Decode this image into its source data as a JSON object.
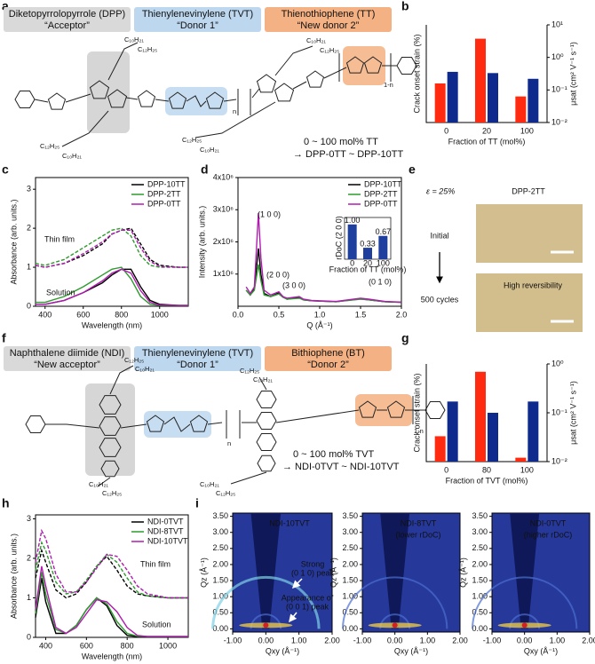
{
  "panel_labels": [
    "a",
    "b",
    "c",
    "d",
    "e",
    "f",
    "g",
    "h",
    "i"
  ],
  "a": {
    "units": [
      {
        "name": "Diketopyrrolopyrrole (DPP)",
        "role": "“Acceptor”",
        "color": "#d9d9d9"
      },
      {
        "name": "Thienylenevinylene (TVT)",
        "role": "“Donor 1”",
        "color": "#bdd7ee"
      },
      {
        "name": "Thienothiophene (TT)",
        "role": "“New donor 2”",
        "color": "#f4b183"
      }
    ],
    "side_chains": [
      "C₁₀H₂₁",
      "C₁₂H₂₅",
      "C₁₂H₂₅",
      "C₁₀H₂₁",
      "C₁₀H₂₁",
      "C₁₂H₂₅",
      "C₁₂H₂₅",
      "C₁₀H₂₁"
    ],
    "repeat_labels": [
      "n",
      "1-n"
    ],
    "composition": "0 ~ 100 mol% TT",
    "series_range": "→ DPP-0TT ~ DPP-10TT"
  },
  "b": {
    "type": "bar",
    "categories": [
      "0",
      "20",
      "100"
    ],
    "xlabel": "Fraction of TT (mol%)",
    "ylabel": "Crack onset strain (%)",
    "y2label": "μsat (cm² V⁻¹ s⁻¹)",
    "ylim": [
      0,
      120
    ],
    "y2lim": [
      0.01,
      10
    ],
    "y2scale": "log",
    "y2ticks": [
      {
        "value": 10,
        "label": "10¹"
      },
      {
        "value": 1,
        "label": "10⁰"
      },
      {
        "value": 0.1,
        "label": "10⁻¹"
      },
      {
        "value": 0.01,
        "label": "10⁻²"
      }
    ],
    "series": [
      {
        "color": "#ff2a10",
        "values": [
          48,
          103,
          32
        ]
      },
      {
        "color": "#0d2a8c",
        "axis": "y2",
        "values": [
          0.36,
          0.33,
          0.22
        ]
      }
    ]
  },
  "c": {
    "type": "line",
    "xlabel": "Wavelength (nm)",
    "ylabel": "Absorbance (arb. units.)",
    "x": [
      350,
      400,
      500,
      600,
      700,
      750,
      800,
      850,
      900,
      950,
      1000,
      1100,
      1150
    ],
    "xlim": [
      350,
      1150
    ],
    "xticks": [
      400,
      600,
      800,
      1000
    ],
    "ylim": [
      0,
      3.3
    ],
    "yticks": [
      0,
      1,
      2,
      3
    ],
    "annotations": [
      "Thin film",
      "Solution"
    ],
    "series": [
      {
        "name": "DPP-10TT",
        "color": "#000000",
        "thin_film": [
          1.05,
          1.0,
          1.1,
          1.3,
          1.6,
          1.85,
          1.95,
          2.0,
          1.6,
          1.2,
          1.05,
          1.0,
          1.0
        ],
        "solution": [
          0.05,
          0.05,
          0.15,
          0.35,
          0.6,
          0.8,
          0.95,
          0.95,
          0.5,
          0.15,
          0.05,
          0.02,
          0.02
        ]
      },
      {
        "name": "DPP-2TT",
        "color": "#2e9b2e",
        "thin_film": [
          1.1,
          1.05,
          1.2,
          1.5,
          1.8,
          1.95,
          2.0,
          1.8,
          1.3,
          1.05,
          1.0,
          1.0,
          1.0
        ],
        "solution": [
          0.1,
          0.1,
          0.25,
          0.5,
          0.8,
          0.95,
          1.0,
          0.7,
          0.25,
          0.05,
          0.02,
          0.02,
          0.02
        ]
      },
      {
        "name": "DPP-0TT",
        "color": "#b01cb0",
        "thin_film": [
          1.05,
          1.0,
          1.1,
          1.35,
          1.65,
          1.85,
          1.95,
          1.95,
          1.5,
          1.15,
          1.02,
          1.0,
          1.0
        ],
        "solution": [
          0.05,
          0.05,
          0.15,
          0.35,
          0.65,
          0.85,
          0.95,
          0.85,
          0.4,
          0.1,
          0.03,
          0.02,
          0.02
        ]
      }
    ]
  },
  "d": {
    "type": "line",
    "xlabel": "Q (Å⁻¹)",
    "ylabel": "Intensity (arb. units.)",
    "x": [
      0.1,
      0.15,
      0.2,
      0.25,
      0.28,
      0.32,
      0.4,
      0.5,
      0.55,
      0.6,
      0.75,
      0.8,
      0.9,
      1.2,
      1.5,
      1.6,
      1.8,
      2.0
    ],
    "xlim": [
      0,
      2
    ],
    "xticks": [
      {
        "value": 0,
        "label": "0.0"
      },
      0.5,
      {
        "value": 1,
        "label": "1.0"
      },
      1.5,
      {
        "value": 2,
        "label": "2.0"
      }
    ],
    "ylim": [
      0,
      4000000
    ],
    "yticks": [
      {
        "value": 1000000,
        "label": "1x10⁶"
      },
      {
        "value": 2000000,
        "label": "2x10⁶"
      },
      {
        "value": 3000000,
        "label": "3x10⁶"
      },
      {
        "value": 4000000,
        "label": "4x10⁶"
      }
    ],
    "peaks": [
      "(1 0 0)",
      "(2 0 0)",
      "(3 0 0)",
      "(0 1 0)"
    ],
    "series": [
      {
        "name": "DPP-10TT",
        "color": "#000000",
        "values": [
          500000,
          350000,
          550000,
          1800000,
          1000000,
          400000,
          300000,
          420000,
          300000,
          220000,
          270000,
          200000,
          170000,
          140000,
          230000,
          200000,
          140000,
          120000
        ]
      },
      {
        "name": "DPP-2TT",
        "color": "#2e9b2e",
        "values": [
          500000,
          350000,
          500000,
          1300000,
          800000,
          350000,
          300000,
          380000,
          280000,
          220000,
          250000,
          200000,
          170000,
          140000,
          220000,
          200000,
          140000,
          120000
        ]
      },
      {
        "name": "DPP-0TT",
        "color": "#b01cb0",
        "values": [
          600000,
          400000,
          600000,
          2900000,
          1500000,
          500000,
          350000,
          450000,
          300000,
          250000,
          300000,
          220000,
          180000,
          150000,
          250000,
          220000,
          150000,
          130000
        ]
      }
    ],
    "inset": {
      "type": "bar",
      "categories": [
        "0",
        "20",
        "100"
      ],
      "values": [
        1,
        0.33,
        0.67
      ],
      "value_labels": [
        "1.00",
        "0.33",
        "0.67"
      ],
      "ylim": [
        0,
        1.2
      ],
      "color": "#1f3f9e",
      "xlabel": "Fraction of TT (mol%)",
      "ylabel": "rDoC (2 0 0)"
    }
  },
  "e": {
    "strain": "ε = 25%",
    "sample": "DPP-2TT",
    "states": [
      "Initial",
      "500 cycles"
    ],
    "note": "High reversibility"
  },
  "f": {
    "units": [
      {
        "name": "Naphthalene diimide (NDI)",
        "role": "“New acceptor”",
        "color": "#d9d9d9"
      },
      {
        "name": "Thienylenevinylene (TVT)",
        "role": "“Donor 1”",
        "color": "#bdd7ee"
      },
      {
        "name": "Bithiophene (BT)",
        "role": "“Donor 2”",
        "color": "#f4b183"
      }
    ],
    "side_chains": [
      "C₁₂H₂₅",
      "C₁₀H₂₁",
      "C₁₀H₂₁",
      "C₁₂H₂₅",
      "C₁₂H₂₅",
      "C₁₀H₂₁",
      "C₁₀H₂₁",
      "C₁₂H₂₅"
    ],
    "repeat_labels": [
      "n",
      "1-n"
    ],
    "composition": "0 ~ 100 mol% TVT",
    "series_range": "→ NDI-0TVT ~ NDI-10TVT"
  },
  "g": {
    "type": "bar",
    "categories": [
      "0",
      "80",
      "100"
    ],
    "xlabel": "Fraction of TVT (mol%)",
    "ylabel": "Crack onset strain (%)",
    "y2label": "μsat (cm² V⁻¹ s⁻¹)",
    "ylim": [
      0,
      100
    ],
    "y2lim": [
      0.01,
      1
    ],
    "y2scale": "log",
    "y2ticks": [
      {
        "value": 1,
        "label": "10⁰"
      },
      {
        "value": 0.1,
        "label": "10⁻¹"
      },
      {
        "value": 0.01,
        "label": "10⁻²"
      }
    ],
    "series": [
      {
        "color": "#ff2a10",
        "values": [
          26,
          92,
          4
        ]
      },
      {
        "color": "#0d2a8c",
        "axis": "y2",
        "values": [
          0.17,
          0.1,
          0.17
        ]
      }
    ]
  },
  "h": {
    "type": "line",
    "xlabel": "Wavelength (nm)",
    "ylabel": "Absorbance (arb. units.)",
    "x": [
      350,
      380,
      400,
      450,
      500,
      550,
      600,
      650,
      700,
      750,
      800,
      850,
      900,
      1000,
      1100
    ],
    "xlim": [
      350,
      1100
    ],
    "xticks": [
      400,
      600,
      800,
      1000
    ],
    "ylim": [
      0,
      3.1
    ],
    "yticks": [
      0,
      1,
      2,
      3
    ],
    "annotations": [
      "Thin film",
      "Solution"
    ],
    "series": [
      {
        "name": "NDI-0TVT",
        "color": "#000000",
        "thin_film": [
          1.5,
          2.2,
          1.9,
          1.2,
          1.0,
          1.1,
          1.4,
          1.8,
          2.05,
          1.7,
          1.3,
          1.1,
          1.05,
          1.0,
          1.0
        ],
        "solution": [
          0.5,
          1.5,
          0.9,
          0.1,
          0.1,
          0.3,
          0.7,
          1.0,
          0.8,
          0.3,
          0.05,
          0.02,
          0.02,
          0.02,
          0.02
        ]
      },
      {
        "name": "NDI-8TVT",
        "color": "#2e9b2e",
        "thin_film": [
          1.7,
          2.4,
          2.2,
          1.4,
          1.1,
          1.15,
          1.45,
          1.8,
          2.1,
          1.9,
          1.5,
          1.15,
          1.05,
          1.0,
          1.0
        ],
        "solution": [
          0.6,
          1.65,
          1.1,
          0.2,
          0.1,
          0.3,
          0.7,
          1.0,
          0.85,
          0.4,
          0.1,
          0.03,
          0.02,
          0.02,
          0.02
        ]
      },
      {
        "name": "NDI-10TVT",
        "color": "#b01cb0",
        "thin_film": [
          1.9,
          2.7,
          2.5,
          1.6,
          1.15,
          1.15,
          1.4,
          1.75,
          2.1,
          2.05,
          1.7,
          1.3,
          1.1,
          1.0,
          1.0
        ],
        "solution": [
          0.7,
          1.8,
          1.3,
          0.25,
          0.1,
          0.25,
          0.6,
          0.95,
          0.9,
          0.65,
          0.25,
          0.05,
          0.02,
          0.02,
          0.02
        ]
      }
    ]
  },
  "i": {
    "xlabel": "Qxy (Å⁻¹)",
    "ylabel": "Qz (Å⁻¹)",
    "xlim": [
      -1,
      2
    ],
    "ylim": [
      -0.1,
      3.6
    ],
    "xticks": [
      {
        "value": -1,
        "label": "-1.00"
      },
      {
        "value": 0,
        "label": "0.00"
      },
      {
        "value": 1,
        "label": "1.00"
      },
      {
        "value": 2,
        "label": "2.00"
      }
    ],
    "yticks": [
      {
        "value": 0,
        "label": "0.00"
      },
      {
        "value": 0.5,
        "label": "0.50"
      },
      {
        "value": 1,
        "label": "1.00"
      },
      {
        "value": 1.5,
        "label": "1.50"
      },
      {
        "value": 2,
        "label": "2.00"
      },
      {
        "value": 2.5,
        "label": "2.50"
      },
      {
        "value": 3,
        "label": "3.00"
      },
      {
        "value": 3.5,
        "label": "3.50"
      }
    ],
    "panels": [
      {
        "title": "NDI-10TVT",
        "annotations": [
          "Strong",
          "(0 1 0) peak",
          "Appearance of",
          "(0 0 1) peak"
        ]
      },
      {
        "title": "NDI-8TVT",
        "subtitle": "(lower rDoC)"
      },
      {
        "title": "NDI-0TVT",
        "subtitle": "(higher rDoC)"
      }
    ]
  }
}
